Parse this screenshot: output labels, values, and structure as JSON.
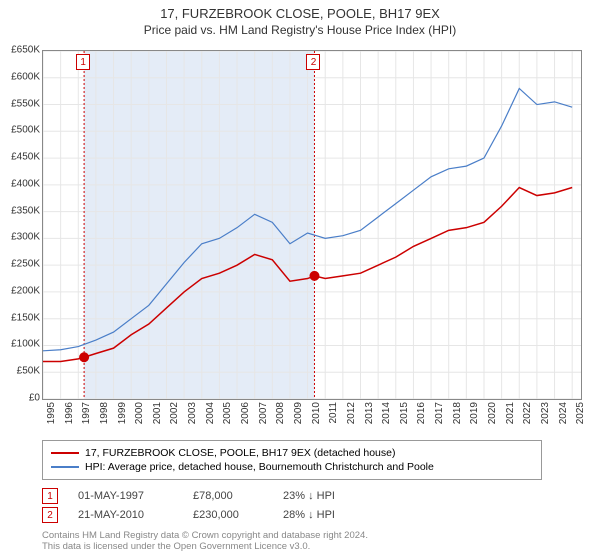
{
  "title": "17, FURZEBROOK CLOSE, POOLE, BH17 9EX",
  "subtitle": "Price paid vs. HM Land Registry's House Price Index (HPI)",
  "chart": {
    "type": "line",
    "background_color": "#ffffff",
    "grid_color": "#e6e6e6",
    "border_color": "#888888",
    "x": {
      "years": [
        1995,
        1996,
        1997,
        1998,
        1999,
        2000,
        2001,
        2002,
        2003,
        2004,
        2005,
        2006,
        2007,
        2008,
        2009,
        2010,
        2011,
        2012,
        2013,
        2014,
        2015,
        2016,
        2017,
        2018,
        2019,
        2020,
        2021,
        2022,
        2023,
        2024,
        2025
      ],
      "xmin": 1995,
      "xmax": 2025.5,
      "tick_fontsize": 10,
      "tick_rotation": -90
    },
    "y": {
      "ticks": [
        0,
        50,
        100,
        150,
        200,
        250,
        300,
        350,
        400,
        450,
        500,
        550,
        600,
        650
      ],
      "tick_labels": [
        "£0",
        "£50K",
        "£100K",
        "£150K",
        "£200K",
        "£250K",
        "£300K",
        "£350K",
        "£400K",
        "£450K",
        "£500K",
        "£550K",
        "£600K",
        "£650K"
      ],
      "ymin": 0,
      "ymax": 650,
      "tick_fontsize": 10
    },
    "shaded_band": {
      "x_from": 1997.33,
      "x_to": 2010.39,
      "color": "#e4ecf7"
    },
    "series": [
      {
        "name": "17, FURZEBROOK CLOSE, POOLE, BH17 9EX (detached house)",
        "color": "#cc0000",
        "line_width": 1.5,
        "points": [
          [
            1995,
            70
          ],
          [
            1996,
            70
          ],
          [
            1997,
            75
          ],
          [
            1997.33,
            78
          ],
          [
            1998,
            85
          ],
          [
            1999,
            95
          ],
          [
            2000,
            120
          ],
          [
            2001,
            140
          ],
          [
            2002,
            170
          ],
          [
            2003,
            200
          ],
          [
            2004,
            225
          ],
          [
            2005,
            235
          ],
          [
            2006,
            250
          ],
          [
            2007,
            270
          ],
          [
            2008,
            260
          ],
          [
            2009,
            220
          ],
          [
            2010,
            225
          ],
          [
            2010.39,
            230
          ],
          [
            2011,
            225
          ],
          [
            2012,
            230
          ],
          [
            2013,
            235
          ],
          [
            2014,
            250
          ],
          [
            2015,
            265
          ],
          [
            2016,
            285
          ],
          [
            2017,
            300
          ],
          [
            2018,
            315
          ],
          [
            2019,
            320
          ],
          [
            2020,
            330
          ],
          [
            2021,
            360
          ],
          [
            2022,
            395
          ],
          [
            2023,
            380
          ],
          [
            2024,
            385
          ],
          [
            2025,
            395
          ]
        ]
      },
      {
        "name": "HPI: Average price, detached house, Bournemouth Christchurch and Poole",
        "color": "#4a7ec8",
        "line_width": 1.2,
        "points": [
          [
            1995,
            90
          ],
          [
            1996,
            92
          ],
          [
            1997,
            98
          ],
          [
            1998,
            110
          ],
          [
            1999,
            125
          ],
          [
            2000,
            150
          ],
          [
            2001,
            175
          ],
          [
            2002,
            215
          ],
          [
            2003,
            255
          ],
          [
            2004,
            290
          ],
          [
            2005,
            300
          ],
          [
            2006,
            320
          ],
          [
            2007,
            345
          ],
          [
            2008,
            330
          ],
          [
            2009,
            290
          ],
          [
            2010,
            310
          ],
          [
            2011,
            300
          ],
          [
            2012,
            305
          ],
          [
            2013,
            315
          ],
          [
            2014,
            340
          ],
          [
            2015,
            365
          ],
          [
            2016,
            390
          ],
          [
            2017,
            415
          ],
          [
            2018,
            430
          ],
          [
            2019,
            435
          ],
          [
            2020,
            450
          ],
          [
            2021,
            510
          ],
          [
            2022,
            580
          ],
          [
            2023,
            550
          ],
          [
            2024,
            555
          ],
          [
            2025,
            545
          ]
        ]
      }
    ],
    "sale_points": [
      {
        "x": 1997.33,
        "y": 78,
        "color": "#cc0000",
        "marker_size": 5
      },
      {
        "x": 2010.39,
        "y": 230,
        "color": "#cc0000",
        "marker_size": 5
      }
    ],
    "event_markers": [
      {
        "n": "1",
        "x": 1997.33,
        "line_color": "#cc0000",
        "line_dash": "2,2"
      },
      {
        "n": "2",
        "x": 2010.39,
        "line_color": "#cc0000",
        "line_dash": "2,2"
      }
    ]
  },
  "legend": {
    "items": [
      {
        "color": "#cc0000",
        "label": "17, FURZEBROOK CLOSE, POOLE, BH17 9EX (detached house)"
      },
      {
        "color": "#4a7ec8",
        "label": "HPI: Average price, detached house, Bournemouth Christchurch and Poole"
      }
    ]
  },
  "sales_table": {
    "rows": [
      {
        "n": "1",
        "date": "01-MAY-1997",
        "price": "£78,000",
        "delta": "23% ↓ HPI",
        "marker_color": "#cc0000"
      },
      {
        "n": "2",
        "date": "21-MAY-2010",
        "price": "£230,000",
        "delta": "28% ↓ HPI",
        "marker_color": "#cc0000"
      }
    ]
  },
  "footer": {
    "line1": "Contains HM Land Registry data © Crown copyright and database right 2024.",
    "line2": "This data is licensed under the Open Government Licence v3.0."
  }
}
